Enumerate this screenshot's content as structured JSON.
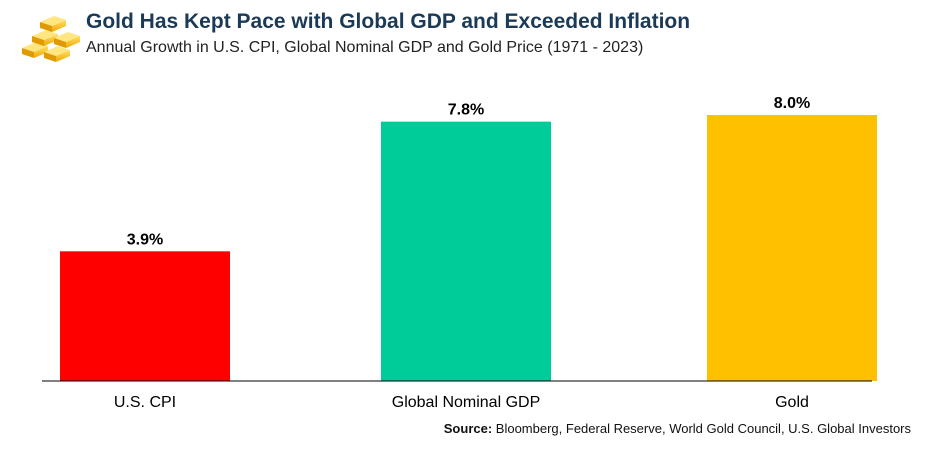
{
  "header": {
    "title": "Gold Has Kept Pace with Global GDP and Exceeded Inflation",
    "subtitle": "Annual Growth in U.S. CPI, Global Nominal GDP and Gold Price (1971 - 2023)",
    "logo_icon": "gold-bars-icon"
  },
  "footer": {
    "source_label": "Source:",
    "source_text": " Bloomberg, Federal Reserve, World Gold Council, U.S. Global Investors"
  },
  "chart_data": {
    "type": "bar",
    "title": "Gold Has Kept Pace with Global GDP and Exceeded Inflation",
    "subtitle": "Annual Growth in U.S. CPI, Global Nominal GDP and Gold Price (1971 - 2023)",
    "categories": [
      "U.S. CPI",
      "Global Nominal GDP",
      "Gold"
    ],
    "values": [
      3.9,
      7.8,
      8.0
    ],
    "labels": [
      "3.9%",
      "7.8%",
      "8.0%"
    ],
    "colors": [
      "#ff0000",
      "#00cc99",
      "#ffc000"
    ],
    "unit": "%",
    "xlabel": "",
    "ylabel": "",
    "ylim": [
      0,
      8.0
    ],
    "grid": false,
    "legend": "none"
  }
}
